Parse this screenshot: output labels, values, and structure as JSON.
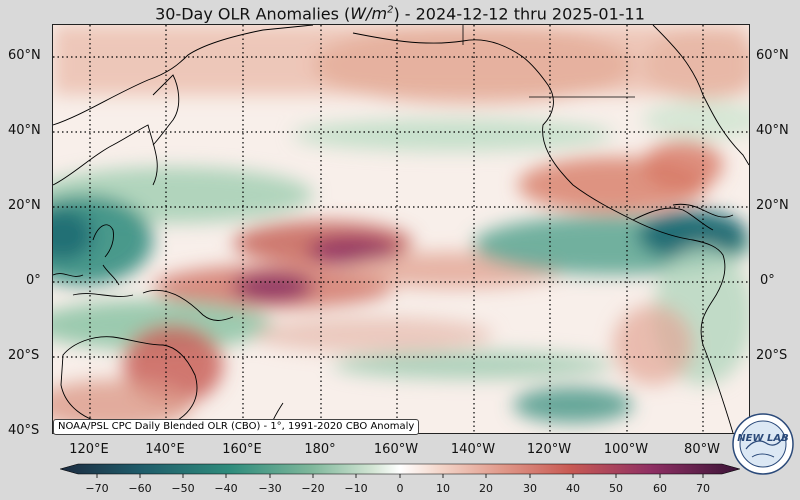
{
  "title": {
    "prefix": "30-Day OLR Anomalies (",
    "unit_base": "W/m",
    "unit_exp": "2",
    "suffix": ") - 2024-12-12 thru 2025-01-11"
  },
  "lat_labels": [
    "60°N",
    "40°N",
    "20°N",
    "0°",
    "20°S",
    "40°S"
  ],
  "lon_labels": [
    "120°E",
    "140°E",
    "160°E",
    "180°",
    "160°W",
    "140°W",
    "120°W",
    "100°W",
    "80°W"
  ],
  "credit": "NOAA/PSL CPC Daily Blended OLR (CBO) - 1°, 1991-2020 CBO Anomaly",
  "colorbar": {
    "ticks": [
      "−70",
      "−60",
      "−50",
      "−40",
      "−30",
      "−20",
      "−10",
      "0",
      "10",
      "20",
      "30",
      "40",
      "50",
      "60",
      "70"
    ],
    "low_color": "#1c2b40",
    "mid_color": "#ffffff",
    "high_color": "#3a1437"
  },
  "logo": {
    "label": "NEW LAB"
  },
  "colors": {
    "negative_anomaly": "#2f8c7c",
    "positive_anomaly": "#c8524a",
    "strong_positive": "#7a1f5f",
    "coastline": "#000000"
  }
}
